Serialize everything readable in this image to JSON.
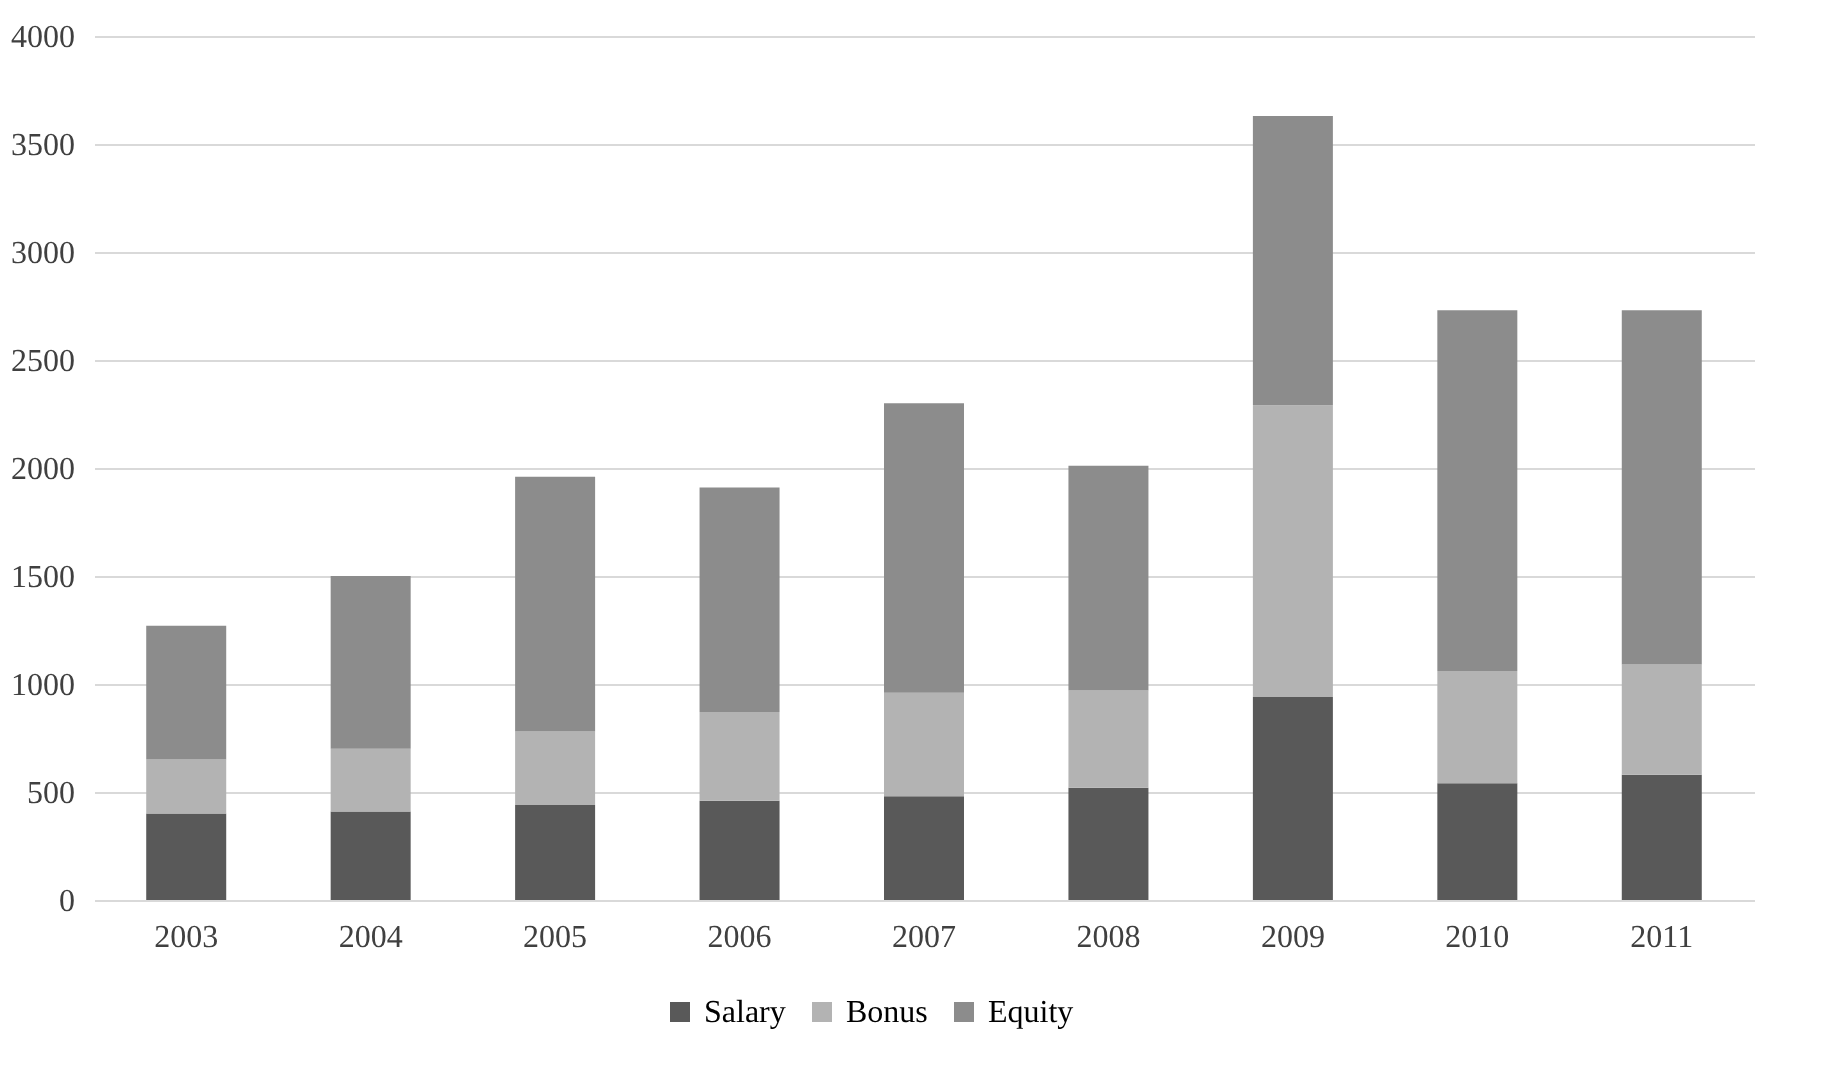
{
  "chart_data": {
    "type": "bar",
    "stacked": true,
    "categories": [
      "2003",
      "2004",
      "2005",
      "2006",
      "2007",
      "2008",
      "2009",
      "2010",
      "2011"
    ],
    "series": [
      {
        "name": "Salary",
        "color": "#595959",
        "values": [
          400,
          410,
          440,
          460,
          480,
          520,
          940,
          540,
          580
        ]
      },
      {
        "name": "Bonus",
        "color": "#b3b3b3",
        "values": [
          250,
          290,
          340,
          410,
          480,
          450,
          1350,
          520,
          510
        ]
      },
      {
        "name": "Equity",
        "color": "#8c8c8c",
        "values": [
          620,
          800,
          1180,
          1040,
          1340,
          1040,
          1340,
          1670,
          1640
        ]
      }
    ],
    "ylim": [
      0,
      4000
    ],
    "yticks": [
      0,
      500,
      1000,
      1500,
      2000,
      2500,
      3000,
      3500,
      4000
    ],
    "grid": "y",
    "legend": "bottom"
  }
}
